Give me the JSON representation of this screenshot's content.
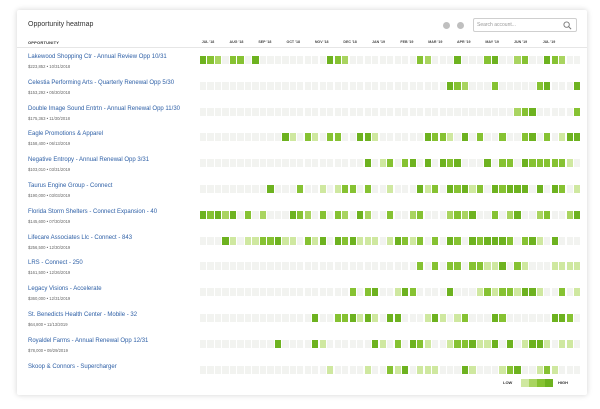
{
  "header": {
    "title": "Opportunity heatmap"
  },
  "search": {
    "placeholder": "Search account...",
    "value": ""
  },
  "columns": {
    "label": "OPPORTUNITY",
    "months": [
      "JUL '18",
      "AUG '18",
      "SEP '18",
      "OCT '18",
      "NOV '18",
      "DEC '18",
      "JAN '19",
      "FEB '19",
      "MAR '19",
      "APR '19",
      "MAY '19",
      "JUN '19",
      "JUL '19"
    ]
  },
  "colors": {
    "empty": "#f2f3f0",
    "levels": [
      "#e8f3d0",
      "#cfe8a0",
      "#a9d460",
      "#86c232",
      "#6db21f"
    ]
  },
  "legend": {
    "low": "LOW",
    "high": "HIGH"
  },
  "rows": [
    {
      "name": "Lakewood Shopping Ctr - Annual Review Opp 10/31",
      "amount": "$223,852",
      "date": "10/31/2018",
      "cells": [
        4,
        3,
        2,
        0,
        3,
        3,
        0,
        4,
        0,
        0,
        0,
        0,
        0,
        0,
        0,
        0,
        0,
        4,
        3,
        2,
        0,
        0,
        0,
        0,
        0,
        0,
        0,
        0,
        0,
        3,
        2,
        0,
        0,
        0,
        4,
        0,
        0,
        0,
        3,
        4,
        0,
        0,
        2,
        3,
        0,
        0,
        4,
        3,
        2,
        0,
        0
      ]
    },
    {
      "name": "Celestia Performing Arts - Quarterly Renewal Opp 5/30",
      "amount": "$153,292",
      "date": "05/30/2018",
      "cells": [
        0,
        0,
        0,
        0,
        0,
        0,
        0,
        0,
        0,
        0,
        0,
        0,
        0,
        0,
        0,
        0,
        0,
        0,
        0,
        0,
        0,
        0,
        0,
        0,
        0,
        0,
        0,
        0,
        0,
        0,
        0,
        0,
        0,
        4,
        3,
        2,
        0,
        0,
        0,
        3,
        0,
        0,
        0,
        0,
        0,
        3,
        4,
        0,
        0,
        0,
        4
      ]
    },
    {
      "name": "Double Image Sound Entrtn - Annual Renewal Opp 11/30",
      "amount": "$175,363",
      "date": "11/30/2018",
      "cells": [
        0,
        0,
        0,
        0,
        0,
        0,
        0,
        0,
        0,
        0,
        0,
        0,
        0,
        0,
        0,
        0,
        0,
        0,
        0,
        0,
        0,
        0,
        0,
        0,
        0,
        0,
        0,
        0,
        0,
        0,
        0,
        0,
        0,
        0,
        0,
        0,
        0,
        0,
        0,
        0,
        0,
        0,
        2,
        3,
        4,
        0,
        0,
        0,
        0,
        0,
        3
      ]
    },
    {
      "name": "Eagle Promotions & Apparel",
      "amount": "$158,400",
      "date": "06/13/2019",
      "cells": [
        0,
        0,
        0,
        0,
        0,
        0,
        0,
        0,
        0,
        0,
        0,
        0,
        0,
        0,
        0,
        0,
        0,
        0,
        0,
        0,
        0,
        0,
        0,
        0,
        0,
        0,
        0,
        0,
        0,
        0,
        0,
        0,
        0,
        0,
        0,
        0,
        0,
        0,
        0,
        0,
        0,
        0,
        0,
        0,
        0,
        0,
        0,
        0,
        0,
        0,
        0
      ]
    },
    {
      "name": "Negative Entropy - Annual Renewal Opp 3/31",
      "amount": "$103,010",
      "date": "03/31/2019",
      "cells": [
        0,
        0,
        0,
        0,
        0,
        0,
        0,
        0,
        0,
        0,
        0,
        0,
        0,
        0,
        0,
        0,
        0,
        0,
        0,
        0,
        0,
        0,
        0,
        0,
        0,
        0,
        0,
        0,
        0,
        0,
        0,
        0,
        0,
        0,
        0,
        0,
        0,
        0,
        0,
        0,
        0,
        0,
        0,
        0,
        0,
        0,
        0,
        0,
        0,
        0,
        0
      ]
    },
    {
      "name": "Taurus Engine Group - Connect",
      "amount": "$190,000",
      "date": "03/03/2019",
      "cells": [
        0,
        0,
        0,
        0,
        0,
        0,
        0,
        0,
        0,
        0,
        0,
        0,
        0,
        0,
        0,
        0,
        0,
        0,
        0,
        0,
        0,
        0,
        0,
        0,
        0,
        0,
        0,
        0,
        0,
        0,
        0,
        0,
        0,
        0,
        0,
        0,
        0,
        0,
        0,
        0,
        0,
        0,
        0,
        0,
        0,
        0,
        0,
        0,
        0,
        0,
        0
      ]
    },
    {
      "name": "Florida Storm Shelters - Connect Expansion - 40",
      "amount": "$145,600",
      "date": "07/30/2019",
      "cells": [
        4,
        3,
        4,
        2,
        4,
        0,
        3,
        0,
        2,
        0,
        0,
        0,
        4,
        3,
        2,
        0,
        3,
        0,
        3,
        2,
        0,
        4,
        2,
        0,
        0,
        3,
        0,
        0,
        2,
        3,
        0,
        0,
        0,
        2,
        3,
        2,
        4,
        0,
        0,
        3,
        0,
        2,
        4,
        0,
        0,
        2,
        3,
        0,
        0,
        2,
        4
      ]
    },
    {
      "name": "Lifecare Associates Llc - Connect - 843",
      "amount": "$256,500",
      "date": "12/30/2019",
      "cells": [
        0,
        0,
        0,
        0,
        0,
        0,
        0,
        0,
        0,
        0,
        0,
        0,
        0,
        0,
        0,
        0,
        0,
        0,
        0,
        0,
        0,
        0,
        0,
        0,
        0,
        0,
        0,
        0,
        0,
        0,
        0,
        0,
        0,
        0,
        0,
        0,
        0,
        0,
        0,
        0,
        0,
        0,
        0,
        0,
        0,
        0,
        0,
        0,
        0,
        0,
        0
      ]
    },
    {
      "name": "LRS - Connect - 250",
      "amount": "$161,500",
      "date": "12/26/2019",
      "cells": [
        0,
        0,
        0,
        0,
        0,
        0,
        0,
        0,
        0,
        0,
        0,
        0,
        0,
        0,
        0,
        0,
        0,
        0,
        0,
        0,
        0,
        0,
        0,
        0,
        0,
        0,
        0,
        0,
        0,
        0,
        0,
        0,
        0,
        0,
        0,
        0,
        0,
        0,
        0,
        0,
        0,
        0,
        0,
        0,
        0,
        0,
        0,
        0,
        0,
        0,
        0
      ]
    },
    {
      "name": "Legacy Visions - Accelerate",
      "amount": "$360,000",
      "date": "12/31/2019",
      "cells": [
        0,
        0,
        0,
        0,
        0,
        0,
        0,
        0,
        0,
        0,
        0,
        0,
        0,
        0,
        0,
        0,
        0,
        0,
        0,
        0,
        0,
        0,
        0,
        0,
        0,
        0,
        0,
        0,
        0,
        0,
        0,
        0,
        0,
        0,
        0,
        0,
        0,
        0,
        0,
        0,
        0,
        0,
        0,
        0,
        0,
        0,
        0,
        0,
        0,
        0,
        0
      ]
    },
    {
      "name": "St. Benedicts Health Center - Mobile - 32",
      "amount": "$64,800",
      "date": "11/13/2019",
      "cells": [
        0,
        0,
        0,
        0,
        0,
        0,
        0,
        0,
        0,
        0,
        0,
        0,
        0,
        0,
        0,
        0,
        0,
        0,
        0,
        0,
        0,
        0,
        0,
        0,
        0,
        0,
        0,
        0,
        0,
        0,
        0,
        0,
        0,
        0,
        0,
        0,
        0,
        0,
        0,
        0,
        0,
        0,
        0,
        0,
        0,
        0,
        0,
        0,
        0,
        0,
        0
      ]
    },
    {
      "name": "Royaldel Farms - Annual Renewal Opp 12/31",
      "amount": "$78,000",
      "date": "09/29/2019",
      "cells": [
        0,
        0,
        0,
        0,
        0,
        0,
        0,
        0,
        0,
        0,
        0,
        0,
        0,
        0,
        0,
        0,
        0,
        0,
        0,
        0,
        0,
        0,
        0,
        0,
        0,
        0,
        0,
        0,
        0,
        0,
        0,
        0,
        0,
        0,
        0,
        0,
        0,
        0,
        0,
        0,
        0,
        0,
        0,
        0,
        0,
        0,
        0,
        0,
        0,
        0,
        0
      ]
    },
    {
      "name": "Skoop & Connors - Supercharger",
      "amount": "",
      "date": "",
      "cells": [
        0,
        0,
        0,
        0,
        0,
        0,
        0,
        0,
        0,
        0,
        0,
        0,
        0,
        0,
        0,
        0,
        0,
        0,
        0,
        0,
        0,
        0,
        0,
        0,
        0,
        0,
        0,
        0,
        0,
        0,
        0,
        0,
        0,
        0,
        0,
        0,
        0,
        0,
        0,
        0,
        0,
        0,
        0,
        0,
        0,
        0,
        0,
        0,
        0,
        0,
        0
      ]
    }
  ]
}
